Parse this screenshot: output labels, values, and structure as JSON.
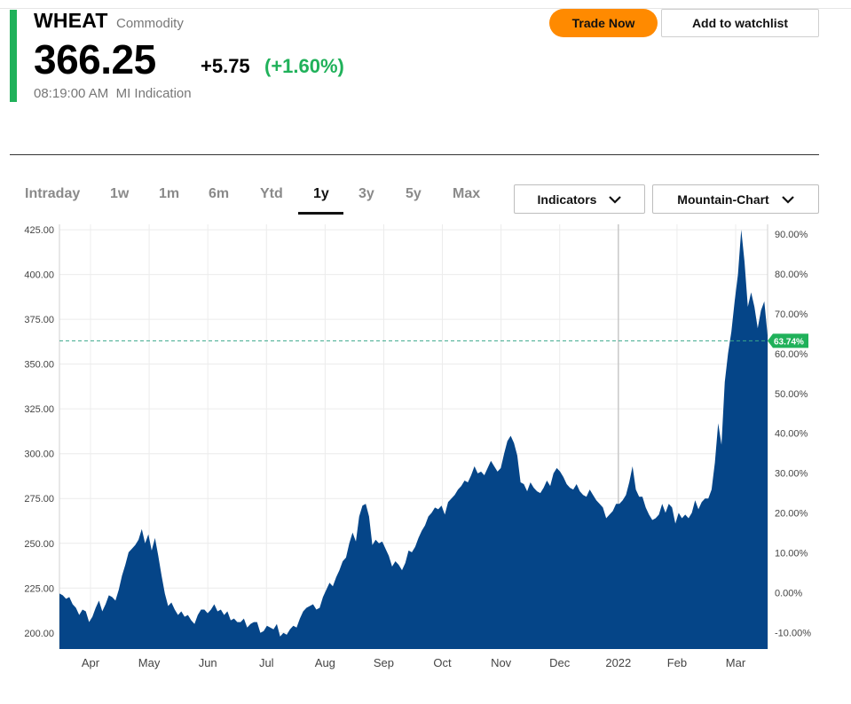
{
  "header": {
    "symbol": "WHEAT",
    "asset_type": "Commodity",
    "price": "366.25",
    "change": "+5.75",
    "change_pct": "(+1.60%)",
    "timestamp": "08:19:00 AM",
    "source": "MI Indication",
    "accent_color": "#20b15a"
  },
  "actions": {
    "trade_label": "Trade Now",
    "watchlist_label": "Add to watchlist",
    "trade_color": "#ff8a00"
  },
  "ranges": [
    "Intraday",
    "1w",
    "1m",
    "6m",
    "Ytd",
    "1y",
    "3y",
    "5y",
    "Max"
  ],
  "active_range": "1y",
  "dropdowns": {
    "indicators_label": "Indicators",
    "chart_type_label": "Mountain-Chart",
    "chevron_icon": "chevron-down-icon"
  },
  "chart_data": {
    "type": "area",
    "fill_color": "#054588",
    "x_labels": [
      "Apr",
      "May",
      "Jun",
      "Jul",
      "Aug",
      "Sep",
      "Oct",
      "Nov",
      "Dec",
      "2022",
      "Feb",
      "Mar"
    ],
    "y_ticks_left": [
      "425.00",
      "400.00",
      "375.00",
      "350.00",
      "325.00",
      "300.00",
      "275.00",
      "250.00",
      "225.00",
      "200.00"
    ],
    "y_ticks_right": [
      "90.00%",
      "80.00%",
      "70.00%",
      "60.00%",
      "50.00%",
      "40.00%",
      "30.00%",
      "20.00%",
      "10.00%",
      "0.00%",
      "-10.00%"
    ],
    "ylim": [
      191,
      428
    ],
    "current_marker_pct": "63.74%",
    "current_marker_value": 363,
    "series": [
      {
        "values": [
          222,
          221,
          219,
          220,
          216,
          214,
          210,
          213,
          212,
          206,
          209,
          214,
          218,
          212,
          216,
          221,
          220,
          218,
          224,
          232,
          238,
          245,
          247,
          249,
          252,
          258,
          250,
          255,
          246,
          253,
          243,
          232,
          222,
          215,
          217,
          213,
          210,
          212,
          209,
          210,
          207,
          205,
          210,
          213,
          213,
          211,
          213,
          216,
          212,
          213,
          210,
          212,
          207,
          208,
          206,
          206,
          208,
          203,
          205,
          206,
          206,
          200,
          201,
          204,
          203,
          202,
          205,
          198,
          200,
          199,
          202,
          204,
          203,
          208,
          212,
          214,
          215,
          216,
          213,
          214,
          220,
          224,
          228,
          226,
          231,
          235,
          240,
          242,
          250,
          256,
          251,
          265,
          271,
          272,
          265,
          249,
          252,
          250,
          251,
          247,
          243,
          237,
          240,
          238,
          235,
          239,
          246,
          245,
          248,
          253,
          257,
          260,
          265,
          267,
          270,
          269,
          271,
          266,
          273,
          275,
          277,
          280,
          282,
          285,
          284,
          288,
          293,
          289,
          290,
          288,
          292,
          296,
          293,
          290,
          292,
          300,
          307,
          310,
          306,
          299,
          284,
          283,
          279,
          284,
          281,
          279,
          278,
          281,
          285,
          282,
          289,
          292,
          290,
          287,
          283,
          281,
          280,
          283,
          279,
          277,
          276,
          280,
          277,
          274,
          272,
          270,
          264,
          266,
          268,
          272,
          272,
          274,
          277,
          284,
          293,
          280,
          276,
          276,
          270,
          266,
          263,
          264,
          266,
          272,
          267,
          272,
          270,
          261,
          267,
          264,
          266,
          264,
          267,
          274,
          269,
          273,
          275,
          275,
          280,
          295,
          317,
          305,
          340,
          356,
          368,
          385,
          400,
          425,
          407,
          382,
          390,
          382,
          370,
          380,
          385,
          366
        ]
      }
    ]
  }
}
